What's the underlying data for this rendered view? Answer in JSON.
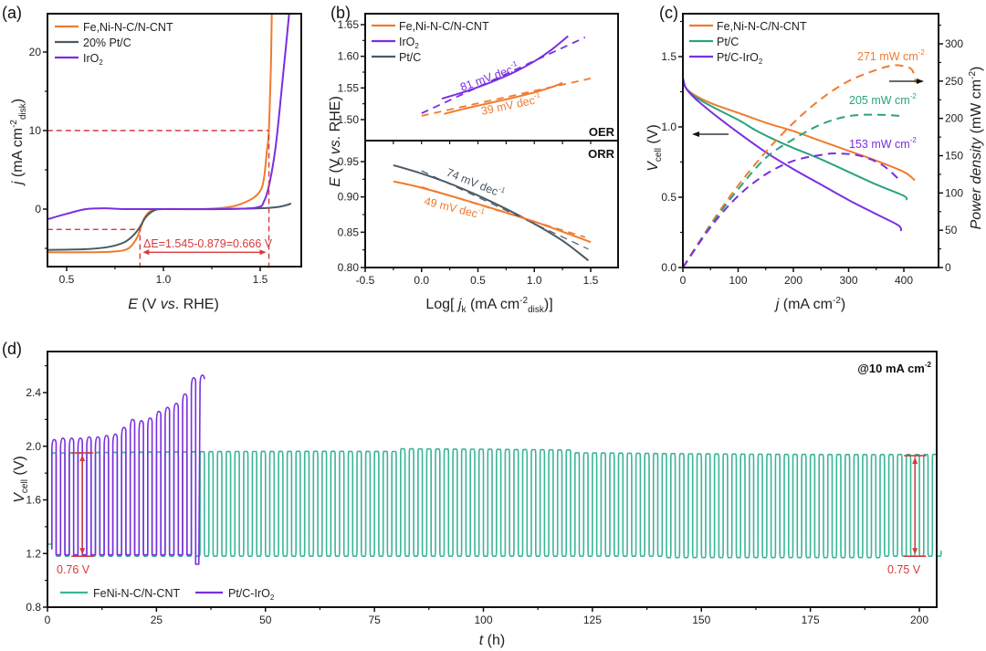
{
  "colors": {
    "fenicnt": "#f07b2e",
    "ptc_gray": "#4a5a66",
    "iro2": "#7a2ee0",
    "ptc_green": "#2aa37f",
    "fenicnt_green": "#3ab596",
    "annotation_red": "#d63a3a",
    "axis": "#111111"
  },
  "chart_data": [
    {
      "id": "a",
      "panel_label": "(a)",
      "type": "line",
      "title": "",
      "xlabel": "E (V vs. RHE)",
      "ylabel": "j (mA cm-2 disk)",
      "xlim": [
        0.4,
        1.7
      ],
      "ylim": [
        -7.5,
        25
      ],
      "xticks": [
        0.5,
        1.0,
        1.5
      ],
      "xtick_labels": [
        "0.5",
        "1.0",
        "1.5"
      ],
      "yticks": [
        0,
        10,
        20
      ],
      "ytick_labels": [
        "0",
        "10",
        "20"
      ],
      "legend": [
        "Fe,Ni-N-C/N-CNT",
        "20% Pt/C",
        "IrO2"
      ],
      "legend_position": "top-left",
      "series": [
        {
          "name": "Fe,Ni-N-C/N-CNT",
          "color_key": "fenicnt",
          "x": [
            0.4,
            0.6,
            0.75,
            0.82,
            0.86,
            0.88,
            0.9,
            0.93,
            0.97,
            1.0,
            1.2,
            1.35,
            1.45,
            1.5,
            1.52,
            1.535,
            1.545,
            1.555,
            1.56
          ],
          "y": [
            -5.5,
            -5.5,
            -5.4,
            -5.0,
            -3.8,
            -2.6,
            -1.2,
            -0.3,
            0.0,
            0.0,
            0.0,
            0.3,
            1.2,
            2.3,
            4.0,
            7.5,
            10.0,
            18.0,
            25.0
          ]
        },
        {
          "name": "20% Pt/C",
          "color_key": "ptc_gray",
          "x": [
            0.4,
            0.6,
            0.72,
            0.8,
            0.85,
            0.88,
            0.91,
            0.95,
            1.0,
            1.2,
            1.5,
            1.6,
            1.66
          ],
          "y": [
            -5.2,
            -5.1,
            -4.8,
            -4.2,
            -3.2,
            -2.2,
            -1.0,
            -0.2,
            0.0,
            0.0,
            0.1,
            0.3,
            0.7
          ]
        },
        {
          "name": "IrO2",
          "color_key": "iro2",
          "x": [
            0.4,
            0.5,
            0.6,
            0.7,
            0.8,
            1.0,
            1.3,
            1.48,
            1.52,
            1.55,
            1.58,
            1.61,
            1.63,
            1.65
          ],
          "y": [
            -1.3,
            -0.6,
            0.0,
            0.1,
            0.0,
            0.0,
            0.0,
            0.2,
            1.0,
            3.5,
            8.0,
            15.0,
            20.0,
            25.0
          ]
        }
      ],
      "reference_lines": [
        {
          "type": "hline",
          "y": 10,
          "x_from": 0.4,
          "x_to": 1.545
        },
        {
          "type": "hline",
          "y": -2.6,
          "x_from": 0.4,
          "x_to": 0.879
        },
        {
          "type": "vline",
          "x": 0.879,
          "y_from": -7.5,
          "y_to": -2.6
        },
        {
          "type": "vline",
          "x": 1.545,
          "y_from": -7.5,
          "y_to": 10
        }
      ],
      "annotations": [
        {
          "text": "ΔE=1.545-0.879=0.666 V",
          "arrow_from": 0.879,
          "arrow_to": 1.545,
          "y": -4.8
        }
      ]
    },
    {
      "id": "b",
      "panel_label": "(b)",
      "type": "line",
      "xlabel": "Log[ jk (mA cm-2 disk)]",
      "ylabel": "E (V vs. RHE)",
      "xlim": [
        -0.5,
        1.75
      ],
      "xticks": [
        -0.5,
        0.0,
        0.5,
        1.0,
        1.5
      ],
      "xtick_labels": [
        "-0.5",
        "0.0",
        "0.5",
        "1.0",
        "1.5"
      ],
      "legend": [
        "Fe,Ni-N-C/N-CNT",
        "IrO2",
        "Pt/C"
      ],
      "legend_position": "top-left",
      "subplots": [
        {
          "name": "OER",
          "label": "OER",
          "ylim": [
            1.47,
            1.665
          ],
          "yticks": [
            1.5,
            1.55,
            1.6,
            1.65
          ],
          "ytick_labels": [
            "1.50",
            "1.55",
            "1.60",
            "1.65"
          ],
          "series": [
            {
              "name": "IrO2",
              "color_key": "iro2",
              "x": [
                0.18,
                0.4,
                0.6,
                0.8,
                1.0,
                1.15,
                1.3
              ],
              "y": [
                1.533,
                1.545,
                1.558,
                1.573,
                1.592,
                1.61,
                1.632
              ]
            },
            {
              "name": "Fe,Ni-N-C/N-CNT",
              "color_key": "fenicnt",
              "x": [
                0.2,
                0.4,
                0.6,
                0.8,
                1.0,
                1.15,
                1.25
              ],
              "y": [
                1.509,
                1.518,
                1.526,
                1.534,
                1.543,
                1.551,
                1.558
              ]
            }
          ],
          "fits": [
            {
              "name": "IrO2 fit",
              "color_key": "iro2",
              "x": [
                0.0,
                1.45
              ],
              "y": [
                1.51,
                1.63
              ]
            },
            {
              "name": "Fe,Ni-N-C/N-CNT fit",
              "color_key": "fenicnt",
              "x": [
                0.0,
                1.5
              ],
              "y": [
                1.506,
                1.565
              ]
            }
          ],
          "annotations": [
            {
              "text": "81 mV dec-1",
              "color_key": "iro2"
            },
            {
              "text": "39 mV dec-1",
              "color_key": "fenicnt"
            }
          ]
        },
        {
          "name": "ORR",
          "label": "ORR",
          "ylim": [
            0.8,
            0.975
          ],
          "yticks": [
            0.8,
            0.85,
            0.9,
            0.95
          ],
          "ytick_labels": [
            "0.80",
            "0.85",
            "0.90",
            "0.95"
          ],
          "series": [
            {
              "name": "Pt/C",
              "color_key": "ptc_gray",
              "x": [
                -0.25,
                0.0,
                0.25,
                0.5,
                0.75,
                1.0,
                1.25,
                1.48
              ],
              "y": [
                0.945,
                0.933,
                0.919,
                0.902,
                0.883,
                0.862,
                0.838,
                0.81
              ]
            },
            {
              "name": "Fe,Ni-N-C/N-CNT",
              "color_key": "fenicnt",
              "x": [
                -0.25,
                0.0,
                0.5,
                1.0,
                1.5
              ],
              "y": [
                0.922,
                0.913,
                0.89,
                0.865,
                0.836
              ]
            }
          ],
          "fits": [
            {
              "name": "Pt/C fit",
              "color_key": "ptc_gray",
              "x": [
                0.0,
                1.48
              ],
              "y": [
                0.937,
                0.826
              ]
            },
            {
              "name": "Fe,Ni-N-C/N-CNT fit",
              "color_key": "fenicnt",
              "x": [
                0.0,
                1.45
              ],
              "y": [
                0.914,
                0.843
              ]
            }
          ],
          "annotations": [
            {
              "text": "74 mV dec-1",
              "color_key": "ptc_gray"
            },
            {
              "text": "49 mV dec-1",
              "color_key": "fenicnt"
            }
          ]
        }
      ]
    },
    {
      "id": "c",
      "panel_label": "(c)",
      "type": "line",
      "xlabel": "j (mA cm-2)",
      "ylabel": "Vcell (V)",
      "ylabel_right": "Power density (mW cm-2)",
      "xlim": [
        0,
        450
      ],
      "ylim": [
        0,
        1.8
      ],
      "ylim_right": [
        0,
        340
      ],
      "xticks": [
        0,
        100,
        200,
        300,
        400
      ],
      "xtick_labels": [
        "0",
        "100",
        "200",
        "300",
        "400"
      ],
      "yticks": [
        0.0,
        0.5,
        1.0,
        1.5
      ],
      "ytick_labels": [
        "0.0",
        "0.5",
        "1.0",
        "1.5"
      ],
      "yticks_right": [
        0,
        50,
        100,
        150,
        200,
        250,
        300
      ],
      "ytick_labels_right": [
        "0",
        "50",
        "100",
        "150",
        "200",
        "250",
        "300"
      ],
      "legend": [
        "Fe,Ni-N-C/N-CNT",
        "Pt/C",
        "Pt/C-IrO2"
      ],
      "legend_position": "top-left",
      "series": [
        {
          "name": "Fe,Ni-N-C/N-CNT",
          "axis": "left",
          "color_key": "fenicnt",
          "x": [
            0,
            5,
            20,
            50,
            100,
            150,
            200,
            250,
            300,
            350,
            400,
            420
          ],
          "y": [
            1.35,
            1.28,
            1.23,
            1.17,
            1.1,
            1.03,
            0.97,
            0.9,
            0.83,
            0.76,
            0.68,
            0.62
          ]
        },
        {
          "name": "Pt/C",
          "axis": "left",
          "color_key": "ptc_green",
          "x": [
            0,
            5,
            20,
            50,
            100,
            130,
            160,
            200,
            250,
            300,
            350,
            400,
            405
          ],
          "y": [
            1.35,
            1.28,
            1.22,
            1.15,
            1.05,
            0.98,
            0.92,
            0.85,
            0.77,
            0.68,
            0.59,
            0.51,
            0.48
          ]
        },
        {
          "name": "Pt/C-IrO2",
          "axis": "left",
          "color_key": "iro2",
          "x": [
            0,
            5,
            20,
            50,
            100,
            150,
            200,
            250,
            300,
            350,
            390,
            395
          ],
          "y": [
            1.35,
            1.28,
            1.21,
            1.11,
            0.96,
            0.82,
            0.7,
            0.59,
            0.48,
            0.38,
            0.3,
            0.26
          ]
        },
        {
          "name": "Fe,Ni-N-C/N-CNT power",
          "axis": "right",
          "dashed": true,
          "color_key": "fenicnt",
          "x": [
            0,
            50,
            100,
            150,
            200,
            250,
            300,
            350,
            380,
            400,
            415,
            422
          ],
          "y": [
            0,
            58,
            110,
            155,
            194,
            226,
            250,
            265,
            271,
            270,
            265,
            248
          ]
        },
        {
          "name": "Pt/C power",
          "axis": "right",
          "dashed": true,
          "color_key": "ptc_green",
          "x": [
            0,
            50,
            100,
            150,
            200,
            250,
            300,
            350,
            400
          ],
          "y": [
            0,
            56,
            105,
            147,
            172,
            192,
            203,
            205,
            203
          ]
        },
        {
          "name": "Pt/C-IrO2 power",
          "axis": "right",
          "dashed": true,
          "color_key": "iro2",
          "x": [
            0,
            50,
            100,
            150,
            200,
            250,
            280,
            320,
            360,
            390
          ],
          "y": [
            0,
            54,
            96,
            125,
            143,
            151,
            153,
            150,
            138,
            119
          ]
        }
      ],
      "annotations": [
        {
          "text": "271 mW cm-2",
          "color_key": "fenicnt"
        },
        {
          "text": "205 mW cm-2",
          "color_key": "ptc_green"
        },
        {
          "text": "153 mW cm-2",
          "color_key": "iro2"
        }
      ],
      "arrows": [
        "left-axis arrow",
        "right-axis arrow"
      ]
    },
    {
      "id": "d",
      "panel_label": "(d)",
      "type": "line",
      "xlabel": "t (h)",
      "ylabel": "Vcell (V)",
      "xlim": [
        0,
        204
      ],
      "ylim": [
        0.8,
        2.65
      ],
      "xticks": [
        0,
        25,
        50,
        75,
        100,
        125,
        150,
        175,
        200
      ],
      "xtick_labels": [
        "0",
        "25",
        "50",
        "75",
        "100",
        "125",
        "150",
        "175",
        "200"
      ],
      "yticks": [
        0.8,
        1.2,
        1.6,
        2.0,
        2.4
      ],
      "ytick_labels": [
        "0.8",
        "1.2",
        "1.6",
        "2.0",
        "2.4"
      ],
      "legend": [
        "FeNi-N-C/N-CNT",
        "Pt/C-IrO2"
      ],
      "legend_position": "bottom-left",
      "corner_label": "@10 mA cm-2",
      "series": [
        {
          "name": "FeNi-N-C/N-CNT",
          "color_key": "fenicnt_green",
          "cycle_period_h": 2,
          "t_start": 1,
          "t_end": 204,
          "charge_V": 1.95,
          "discharge_V": 1.18
        },
        {
          "name": "Pt/C-IrO2",
          "color_key": "iro2",
          "cycle_period_h": 2,
          "t_start": 1,
          "t_end": 36,
          "charge_peaks_V": [
            2.05,
            2.06,
            2.06,
            2.06,
            2.07,
            2.07,
            2.08,
            2.09,
            2.14,
            2.2,
            2.19,
            2.21,
            2.26,
            2.29,
            2.32,
            2.39,
            2.51,
            2.53
          ],
          "discharge_V": 1.19
        }
      ],
      "annotations": [
        {
          "text": "0.76 V",
          "t": 8,
          "from_V": 1.18,
          "to_V": 1.95
        },
        {
          "text": "0.75 V",
          "t": 199,
          "from_V": 1.18,
          "to_V": 1.93
        }
      ]
    }
  ],
  "texts": {
    "a_label": "(a)",
    "b_label": "(b)",
    "c_label": "(c)",
    "d_label": "(d)",
    "a_x": "0.5",
    "a_x2": "1.0",
    "a_x3": "1.5",
    "a_y0": "0",
    "a_y10": "10",
    "a_y20": "20",
    "a_leg1": "Fe,Ni-N-C/N-CNT",
    "a_leg2": "20% Pt/C",
    "a_leg3": "IrO",
    "a_delta": "ΔE=1.545-0.879=0.666 V",
    "b_leg1": "Fe,Ni-N-C/N-CNT",
    "b_leg2": "IrO",
    "b_leg3": "Pt/C",
    "b_oer": "OER",
    "b_orr": "ORR",
    "b_81": "81 mV dec",
    "b_39": "39 mV dec",
    "b_74": "74 mV dec",
    "b_49": "49 mV dec",
    "c_leg1": "Fe,Ni-N-C/N-CNT",
    "c_leg2": "Pt/C",
    "c_leg3": "Pt/C-IrO",
    "c_271": "271 mW cm",
    "c_205": "205 mW cm",
    "c_153": "153 mW cm",
    "d_corner": "@10 mA cm",
    "d_076": "0.76 V",
    "d_075": "0.75 V",
    "d_leg1": "FeNi-N-C/N-CNT",
    "d_leg2": "Pt/C-IrO",
    "sup_m1": "-1",
    "sup_m2": "-2",
    "sub_2": "2"
  }
}
